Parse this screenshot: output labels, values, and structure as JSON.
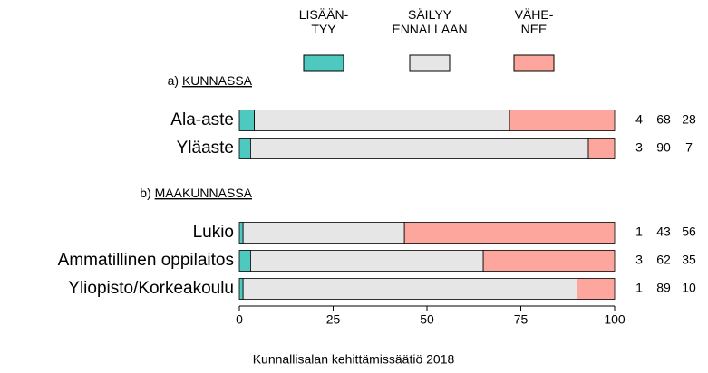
{
  "chart_data": {
    "type": "stacked-bar-horizontal",
    "groups": [
      {
        "letter": "a)",
        "name": "KUNNASSA"
      },
      {
        "letter": "b)",
        "name": "MAAKUNNASSA"
      }
    ],
    "categories": [
      "Ala-aste",
      "Yläaste",
      "Lukio",
      "Ammatillinen oppilaitos",
      "Yliopisto/Korkeakoulu"
    ],
    "series": [
      {
        "name": "LISÄÄN-\nTYY",
        "color": "#4ec9c0",
        "values": [
          4,
          3,
          1,
          3,
          1
        ]
      },
      {
        "name": "SÄILYY\nENNALLAAN",
        "color": "#e6e6e6",
        "values": [
          68,
          90,
          43,
          62,
          89
        ]
      },
      {
        "name": "VÄHE-\nNEE",
        "color": "#fca69d",
        "values": [
          28,
          7,
          56,
          35,
          10
        ]
      }
    ],
    "xlim": [
      0,
      100
    ],
    "xticks": [
      0,
      25,
      50,
      75,
      100
    ],
    "source": "Kunnallisalan kehittämissäätiö 2018"
  }
}
